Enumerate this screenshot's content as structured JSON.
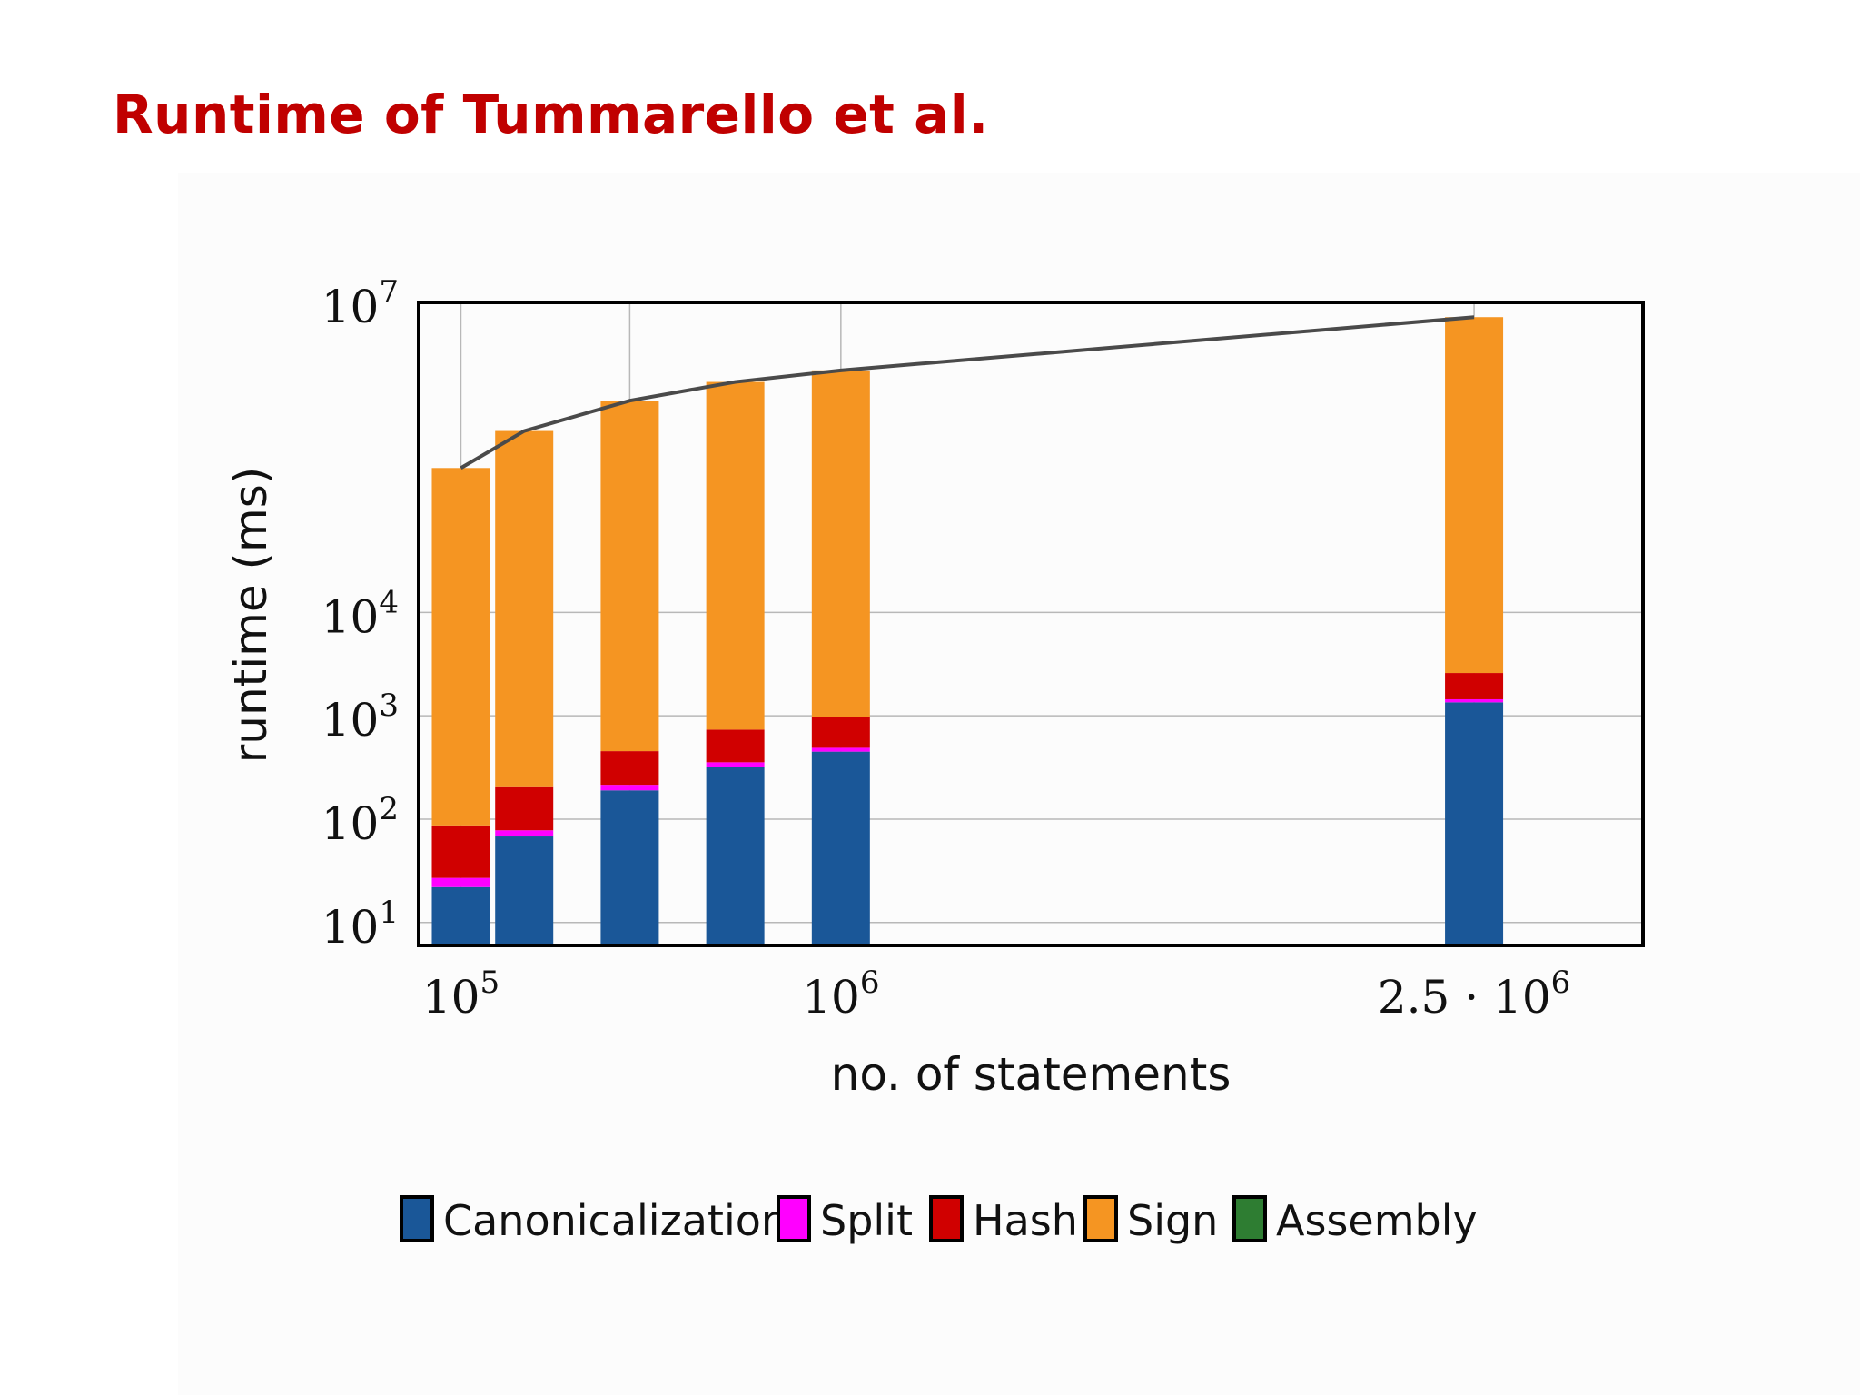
{
  "slide": {
    "title": "Runtime of Tummarello et al."
  },
  "chart_data": {
    "type": "bar",
    "stacked": true,
    "xlabel": "no. of statements",
    "ylabel": "runtime (ms)",
    "x_scale": "linear",
    "y_scale": "log",
    "ylim": [
      6,
      10000000
    ],
    "xlim": [
      0,
      2900000
    ],
    "grid": true,
    "legend_position": "bottom",
    "x_tick_labels": [
      {
        "value": 100000,
        "base": "10",
        "sup": "5"
      },
      {
        "value": 1000000,
        "base": "10",
        "sup": "6"
      },
      {
        "value": 2500000,
        "base": "2.5 · 10",
        "sup": "6"
      }
    ],
    "x_grid_extra": [
      500000
    ],
    "y_tick_labels": [
      {
        "value": 10,
        "base": "10",
        "sup": "1"
      },
      {
        "value": 100,
        "base": "10",
        "sup": "2"
      },
      {
        "value": 1000,
        "base": "10",
        "sup": "3"
      },
      {
        "value": 10000,
        "base": "10",
        "sup": "4"
      },
      {
        "value": 10000000,
        "base": "10",
        "sup": "7"
      }
    ],
    "x": [
      100000,
      250000,
      500000,
      750000,
      1000000,
      2500000
    ],
    "series": [
      {
        "name": "Canonicalization",
        "color": "#1a5798",
        "values": [
          22,
          68,
          190,
          320,
          450,
          1350
        ]
      },
      {
        "name": "Split",
        "color": "#ff00ff",
        "values": [
          5,
          10,
          25,
          35,
          40,
          95
        ]
      },
      {
        "name": "Hash",
        "color": "#d00000",
        "values": [
          60,
          130,
          240,
          380,
          480,
          1150
        ]
      },
      {
        "name": "Sign",
        "color": "#f59522",
        "values": [
          250000,
          570000,
          1120000,
          1700000,
          2200000,
          7200000
        ]
      },
      {
        "name": "Assembly",
        "color": "#2e7d32",
        "values": [
          0,
          0,
          0,
          0,
          0,
          0
        ]
      }
    ],
    "total_line": {
      "color": "#4a4a4a",
      "values": [
        250000,
        570000,
        1120000,
        1700000,
        2200000,
        7200000
      ]
    }
  }
}
